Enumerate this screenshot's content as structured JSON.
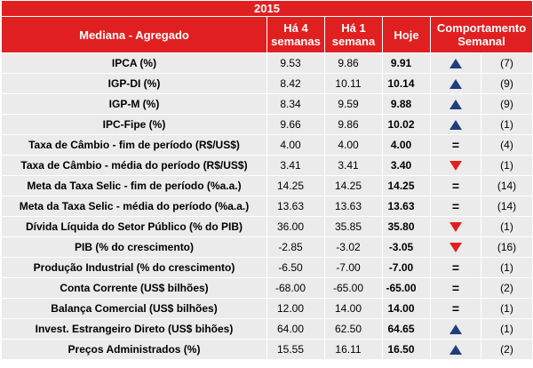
{
  "year": "2015",
  "header": {
    "label_col": "Mediana - Agregado",
    "col_4weeks_line1": "Há 4",
    "col_4weeks_line2": "semanas",
    "col_1week_line1": "Há 1",
    "col_1week_line2": "semana",
    "col_today": "Hoje",
    "col_behavior_line1": "Comportamento",
    "col_behavior_line2": "Semanal"
  },
  "colors": {
    "header_bg": "#e02020",
    "row_bg": "#ebebeb",
    "up": "#1f3f7a",
    "down": "#e02020"
  },
  "rows": [
    {
      "label": "IPCA (%)",
      "w4": "9.53",
      "w1": "9.86",
      "today": "9.91",
      "trend": "up",
      "count": "(7)"
    },
    {
      "label": "IGP-DI (%)",
      "w4": "8.42",
      "w1": "10.11",
      "today": "10.14",
      "trend": "up",
      "count": "(9)"
    },
    {
      "label": "IGP-M (%)",
      "w4": "8.34",
      "w1": "9.59",
      "today": "9.88",
      "trend": "up",
      "count": "(9)"
    },
    {
      "label": "IPC-Fipe (%)",
      "w4": "9.66",
      "w1": "9.86",
      "today": "10.02",
      "trend": "up",
      "count": "(1)"
    },
    {
      "label": "Taxa de Câmbio - fim de período (R$/US$)",
      "w4": "4.00",
      "w1": "4.00",
      "today": "4.00",
      "trend": "equal",
      "count": "(4)"
    },
    {
      "label": "Taxa de Câmbio - média do período (R$/US$)",
      "w4": "3.41",
      "w1": "3.41",
      "today": "3.40",
      "trend": "down",
      "count": "(1)"
    },
    {
      "label": "Meta da Taxa Selic - fim de período (%a.a.)",
      "w4": "14.25",
      "w1": "14.25",
      "today": "14.25",
      "trend": "equal",
      "count": "(14)"
    },
    {
      "label": "Meta da Taxa Selic - média do período (%a.a.)",
      "w4": "13.63",
      "w1": "13.63",
      "today": "13.63",
      "trend": "equal",
      "count": "(14)"
    },
    {
      "label": "Dívida Líquida do Setor Público (% do PIB)",
      "w4": "36.00",
      "w1": "35.85",
      "today": "35.80",
      "trend": "down",
      "count": "(1)"
    },
    {
      "label": "PIB (% do crescimento)",
      "w4": "-2.85",
      "w1": "-3.02",
      "today": "-3.05",
      "trend": "down",
      "count": "(16)"
    },
    {
      "label": "Produção Industrial (% do crescimento)",
      "w4": "-6.50",
      "w1": "-7.00",
      "today": "-7.00",
      "trend": "equal",
      "count": "(1)"
    },
    {
      "label": "Conta Corrente (US$ bilhões)",
      "w4": "-68.00",
      "w1": "-65.00",
      "today": "-65.00",
      "trend": "equal",
      "count": "(2)"
    },
    {
      "label": "Balança Comercial (US$ bilhões)",
      "w4": "12.00",
      "w1": "14.00",
      "today": "14.00",
      "trend": "equal",
      "count": "(1)"
    },
    {
      "label": "Invest. Estrangeiro Direto (US$ bihões)",
      "w4": "64.00",
      "w1": "62.50",
      "today": "64.65",
      "trend": "up",
      "count": "(1)"
    },
    {
      "label": "Preços Administrados (%)",
      "w4": "15.55",
      "w1": "16.11",
      "today": "16.50",
      "trend": "up",
      "count": "(2)"
    }
  ]
}
